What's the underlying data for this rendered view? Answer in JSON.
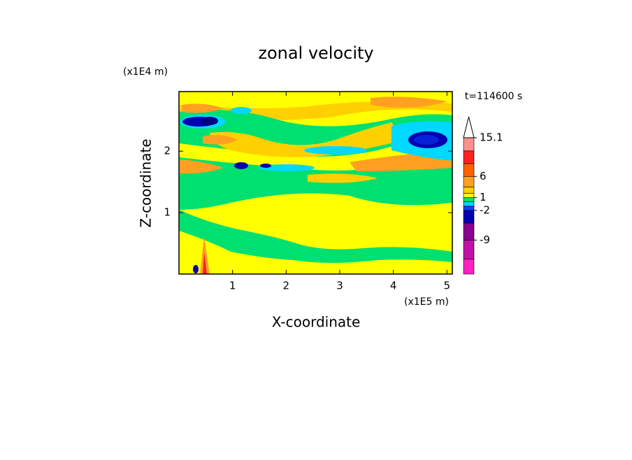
{
  "chart_data": {
    "type": "contour",
    "title": "zonal velocity",
    "x_label": "X-coordinate",
    "y_label": "Z-coordinate",
    "x_unit": "(x1E5 m)",
    "y_unit": "(x1E4 m)",
    "time_label": "t=114600 s",
    "xlim": [
      0,
      5.1
    ],
    "xticks": [
      1,
      2,
      3,
      4,
      5
    ],
    "ylim": [
      0,
      2.97
    ],
    "yticks": [
      1,
      2
    ],
    "colorbar": {
      "lim": [
        -17,
        15.1
      ],
      "levels": [
        -17,
        -13.5,
        -9,
        -5,
        -2,
        -1,
        0,
        1,
        2,
        3.5,
        6,
        9,
        12,
        15.1
      ],
      "colors": [
        "#ff20c0",
        "#c010a8",
        "#8a0090",
        "#0000b0",
        "#1040ff",
        "#00d8ff",
        "#00e070",
        "#ffff00",
        "#ffd000",
        "#ffa020",
        "#ff6000",
        "#ff2020",
        "#ff9090"
      ],
      "extend_color": "#ffffff",
      "ticks": [
        15.1,
        6,
        1,
        -2,
        -9
      ]
    }
  }
}
